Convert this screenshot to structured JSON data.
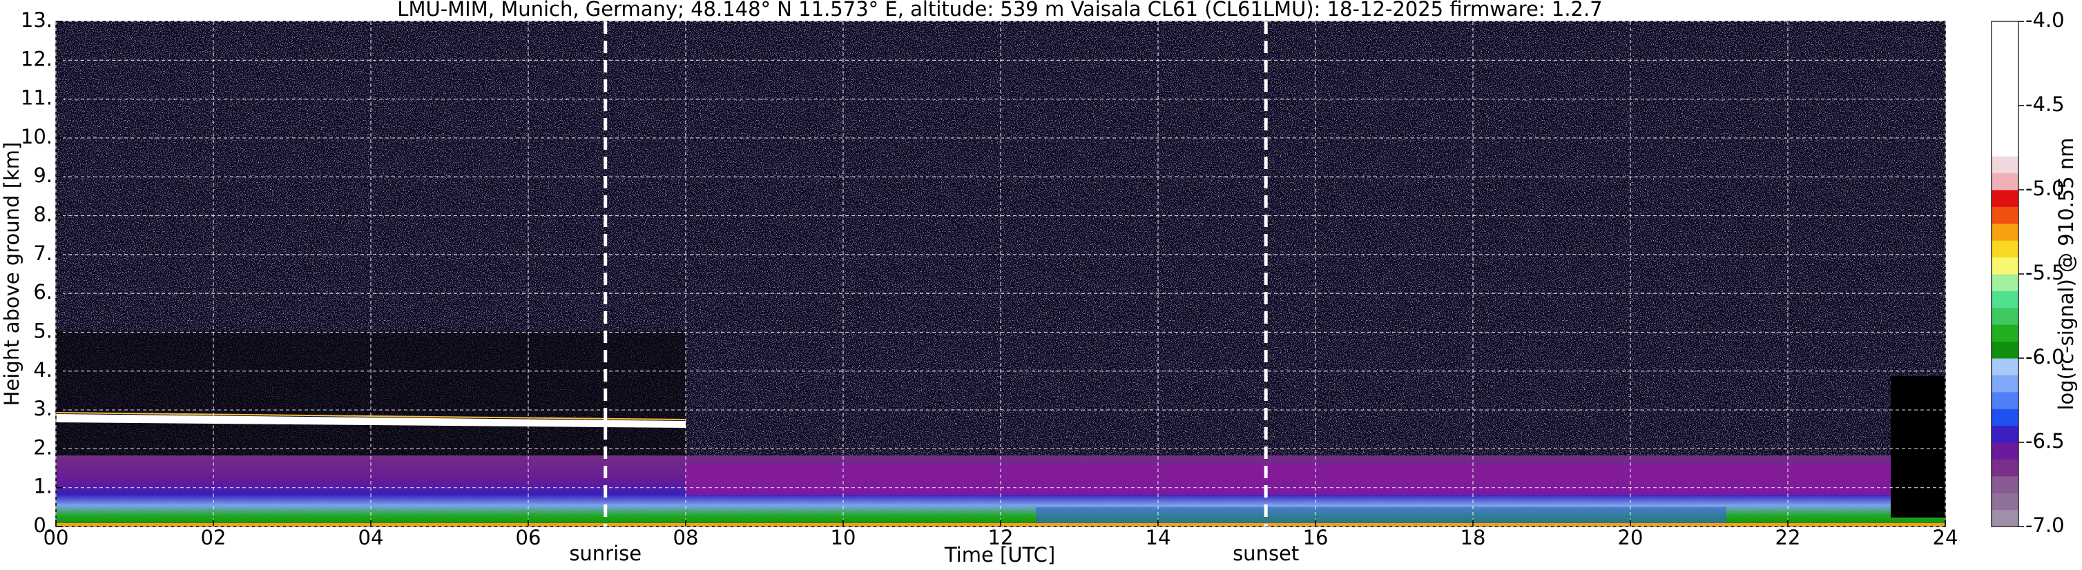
{
  "chart_data": {
    "type": "heatmap",
    "title": "LMU-MIM, Munich, Germany; 48.148° N 11.573° E, altitude: 539 m    Vaisala CL61 (CL61LMU): 18-12-2025    firmware: 1.2.7",
    "xlabel": "Time [UTC]",
    "ylabel": "Height above ground [km]",
    "xlim": [
      0,
      24
    ],
    "xticks": [
      {
        "value": 0,
        "label": "00"
      },
      {
        "value": 2,
        "label": "02"
      },
      {
        "value": 4,
        "label": "04"
      },
      {
        "value": 6,
        "label": "06"
      },
      {
        "value": 8,
        "label": "08"
      },
      10,
      12,
      14,
      16,
      18,
      20,
      22,
      24
    ],
    "ylim": [
      0,
      13
    ],
    "yticks": [
      {
        "value": 0,
        "label": "0."
      },
      {
        "value": 1,
        "label": "1."
      },
      {
        "value": 2,
        "label": "2."
      },
      {
        "value": 3,
        "label": "3."
      },
      {
        "value": 4,
        "label": "4."
      },
      {
        "value": 5,
        "label": "5."
      },
      {
        "value": 6,
        "label": "6."
      },
      {
        "value": 7,
        "label": "7."
      },
      {
        "value": 8,
        "label": "8."
      },
      {
        "value": 9,
        "label": "9."
      },
      {
        "value": 10,
        "label": "10."
      },
      {
        "value": 11,
        "label": "11."
      },
      {
        "value": 12,
        "label": "12."
      },
      {
        "value": 13,
        "label": "13."
      }
    ],
    "grid": true,
    "annotations": [
      {
        "text": "sunrise",
        "x": 6.98
      },
      {
        "text": "sunset",
        "x": 15.37
      }
    ],
    "colorbar": {
      "label": "log(rc-signal) @ 910.55 nm",
      "clim": [
        -7,
        -4
      ],
      "ticks": [
        {
          "value": -7,
          "label": "-7.0"
        },
        -6.5,
        {
          "value": -6,
          "label": "-6.0"
        },
        -5.5,
        {
          "value": -5,
          "label": "-5.0"
        },
        -4.5,
        {
          "value": -4,
          "label": "-4.0"
        }
      ],
      "colors": [
        "#a08fa8",
        "#8f7199",
        "#8a5a93",
        "#7a2f8a",
        "#6a1a9a",
        "#3a20c0",
        "#2050f0",
        "#5080f8",
        "#80a8f8",
        "#a8c8f8",
        "#109010",
        "#20b020",
        "#40c860",
        "#50e090",
        "#a0f0a0",
        "#f8f870",
        "#f8d820",
        "#f8a010",
        "#f05010",
        "#e01010",
        "#f0b0b8",
        "#f0d8dc",
        "#ffffff",
        "#ffffff",
        "#ffffff",
        "#ffffff",
        "#ffffff",
        "#ffffff",
        "#ffffff",
        "#ffffff"
      ]
    }
  }
}
